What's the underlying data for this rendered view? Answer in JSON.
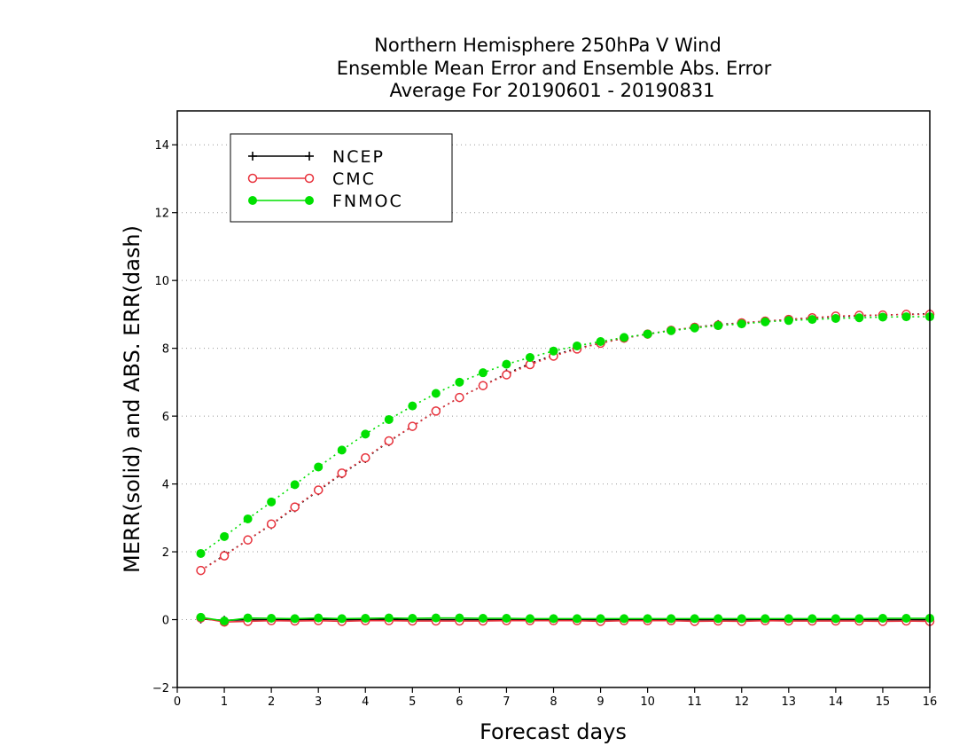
{
  "chart_data": {
    "type": "line",
    "title": [
      "Northern Hemisphere 250hPa V Wind",
      "Ensemble Mean Error and Ensemble Abs. Error",
      "Average For 20190601 - 20190831"
    ],
    "xlabel": "Forecast days",
    "ylabel": "MERR(solid) and ABS. ERR(dash)",
    "xlim": [
      0,
      16
    ],
    "ylim": [
      -2,
      15
    ],
    "xticks": [
      0,
      1,
      2,
      3,
      4,
      5,
      6,
      7,
      8,
      9,
      10,
      11,
      12,
      13,
      14,
      15,
      16
    ],
    "yticks": [
      -2,
      0,
      2,
      4,
      6,
      8,
      10,
      12,
      14
    ],
    "grid": "horizontal-dotted",
    "legend_position": "top-left",
    "x": [
      0.5,
      1,
      1.5,
      2,
      2.5,
      3,
      3.5,
      4,
      4.5,
      5,
      5.5,
      6,
      6.5,
      7,
      7.5,
      8,
      8.5,
      9,
      9.5,
      10,
      10.5,
      11,
      11.5,
      12,
      12.5,
      13,
      13.5,
      14,
      14.5,
      15,
      15.5,
      16
    ],
    "series": [
      {
        "name": "NCEP",
        "color": "#000000",
        "marker": "plus",
        "abs_err": [
          1.45,
          1.9,
          2.35,
          2.8,
          3.3,
          3.8,
          4.3,
          4.75,
          5.25,
          5.7,
          6.15,
          6.55,
          6.9,
          7.25,
          7.55,
          7.8,
          8.0,
          8.15,
          8.3,
          8.42,
          8.53,
          8.62,
          8.7,
          8.75,
          8.8,
          8.85,
          8.9,
          8.93,
          8.96,
          8.98,
          9.0,
          9.02
        ],
        "mean_err": [
          0.02,
          -0.02,
          0.0,
          0.0,
          0.0,
          0.01,
          0.0,
          0.0,
          0.01,
          0.0,
          0.0,
          0.0,
          0.0,
          0.0,
          0.0,
          0.0,
          0.0,
          0.0,
          0.0,
          0.0,
          0.0,
          0.0,
          0.0,
          0.0,
          0.0,
          0.0,
          0.0,
          0.0,
          0.0,
          0.0,
          0.0,
          0.0
        ]
      },
      {
        "name": "CMC",
        "color": "#e8323c",
        "marker": "open-circle",
        "abs_err": [
          1.45,
          1.88,
          2.35,
          2.82,
          3.32,
          3.82,
          4.32,
          4.77,
          5.27,
          5.7,
          6.15,
          6.55,
          6.9,
          7.22,
          7.52,
          7.77,
          7.98,
          8.15,
          8.3,
          8.42,
          8.53,
          8.62,
          8.68,
          8.75,
          8.8,
          8.85,
          8.9,
          8.95,
          8.97,
          8.98,
          9.0,
          9.0
        ],
        "mean_err": [
          0.05,
          -0.07,
          -0.05,
          -0.03,
          -0.04,
          -0.03,
          -0.05,
          -0.03,
          -0.03,
          -0.04,
          -0.04,
          -0.04,
          -0.04,
          -0.03,
          -0.03,
          -0.03,
          -0.03,
          -0.05,
          -0.03,
          -0.03,
          -0.03,
          -0.05,
          -0.04,
          -0.05,
          -0.03,
          -0.04,
          -0.04,
          -0.04,
          -0.04,
          -0.05,
          -0.04,
          -0.05
        ]
      },
      {
        "name": "FNMOC",
        "color": "#00e000",
        "marker": "filled-circle",
        "abs_err": [
          1.95,
          2.45,
          2.97,
          3.47,
          3.98,
          4.5,
          5.0,
          5.47,
          5.9,
          6.3,
          6.67,
          7.0,
          7.28,
          7.53,
          7.73,
          7.92,
          8.07,
          8.2,
          8.32,
          8.42,
          8.52,
          8.6,
          8.67,
          8.72,
          8.78,
          8.82,
          8.85,
          8.88,
          8.9,
          8.92,
          8.93,
          8.93
        ],
        "mean_err": [
          0.07,
          -0.04,
          0.05,
          0.04,
          0.03,
          0.05,
          0.03,
          0.04,
          0.05,
          0.04,
          0.05,
          0.05,
          0.04,
          0.04,
          0.03,
          0.03,
          0.03,
          0.03,
          0.03,
          0.03,
          0.03,
          0.03,
          0.03,
          0.03,
          0.03,
          0.03,
          0.03,
          0.03,
          0.03,
          0.04,
          0.04,
          0.04
        ]
      }
    ]
  }
}
